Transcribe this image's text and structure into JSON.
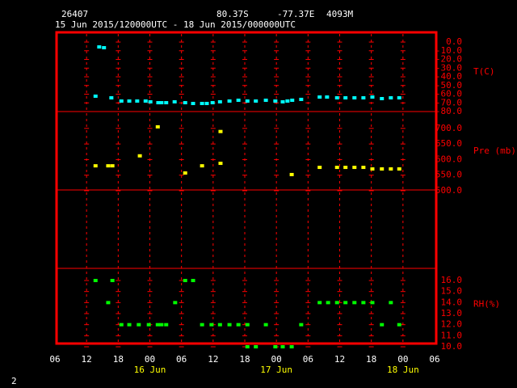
{
  "header": {
    "station": "26407",
    "lat": "80.37S",
    "lon": "-77.37E",
    "elev": "4093M",
    "period": "15 Jun 2015/120000UTC - 18 Jun 2015/000000UTC"
  },
  "footer": "2",
  "chart_data": [
    {
      "type": "scatter",
      "ylabel": "T(C)",
      "color": "#00ffff",
      "xlim": [
        6,
        78
      ],
      "ylim": [
        -80,
        11.2
      ],
      "yticks": [
        {
          "value": 0,
          "label": "0.0"
        },
        {
          "value": -10,
          "label": "-10.0"
        },
        {
          "value": -20,
          "label": "-20.0"
        },
        {
          "value": -30,
          "label": "-30.0"
        },
        {
          "value": -40,
          "label": "-40.0"
        },
        {
          "value": -50,
          "label": "-50.0"
        },
        {
          "value": -60,
          "label": "-60.0"
        },
        {
          "value": -70,
          "label": "-70.0"
        },
        {
          "value": -80,
          "label": "-80.0"
        }
      ],
      "x": [
        13.7,
        14.4,
        15.3,
        16.7,
        18.6,
        20.1,
        21.6,
        23.2,
        24.1,
        25.6,
        26.2,
        27.1,
        28.7,
        30.7,
        32.2,
        33.9,
        34.8,
        35.9,
        37.3,
        39.1,
        40.8,
        42.5,
        44.1,
        46.0,
        47.8,
        49.2,
        50.1,
        51.0,
        52.7,
        56.2,
        57.6,
        59.5,
        61.1,
        62.8,
        64.5,
        66.2,
        68.0,
        69.7,
        71.3
      ],
      "values": [
        -62.3,
        -5.6,
        -6.5,
        -64.2,
        -67.9,
        -67.9,
        -67.9,
        -67.9,
        -68.8,
        -69.8,
        -69.8,
        -69.8,
        -68.8,
        -69.8,
        -70.7,
        -70.7,
        -70.7,
        -69.8,
        -68.8,
        -67.9,
        -67.0,
        -67.9,
        -67.9,
        -67.0,
        -67.9,
        -68.8,
        -67.9,
        -67.0,
        -66.0,
        -63.3,
        -63.3,
        -64.2,
        -64.2,
        -64.2,
        -64.2,
        -63.3,
        -65.1,
        -64.2,
        -64.2
      ]
    },
    {
      "type": "scatter",
      "ylabel": "Pre (mb)",
      "color": "#ffff00",
      "xlim": [
        6,
        78
      ],
      "ylim": [
        500,
        754
      ],
      "yticks": [
        {
          "value": 700,
          "label": "700.0"
        },
        {
          "value": 650,
          "label": "650.0"
        },
        {
          "value": 600,
          "label": "600.0"
        },
        {
          "value": 550,
          "label": "550.0"
        },
        {
          "value": 500,
          "label": "500.0"
        }
      ],
      "x": [
        13.7,
        16.1,
        16.9,
        22.1,
        25.5,
        30.7,
        33.9,
        37.4,
        37.4,
        50.9,
        56.2,
        59.5,
        61.1,
        62.8,
        64.5,
        66.2,
        68.0,
        69.7,
        71.3
      ],
      "values": [
        580,
        580,
        580,
        612,
        705,
        557,
        580,
        690,
        588,
        552,
        575,
        575,
        575,
        575,
        575,
        570,
        570,
        570,
        570
      ]
    },
    {
      "type": "scatter",
      "ylabel": "RH(%)",
      "color": "#00ff00",
      "xlim": [
        6,
        78
      ],
      "ylim": [
        10,
        17.1
      ],
      "yticks": [
        {
          "value": 16,
          "label": "16.0"
        },
        {
          "value": 15,
          "label": "15.0"
        },
        {
          "value": 14,
          "label": "14.0"
        },
        {
          "value": 13,
          "label": "13.0"
        },
        {
          "value": 12,
          "label": "12.0"
        },
        {
          "value": 11,
          "label": "11.0"
        },
        {
          "value": 10,
          "label": "10.0"
        }
      ],
      "xticks": [
        {
          "value": 6,
          "label": "06"
        },
        {
          "value": 12,
          "label": "12"
        },
        {
          "value": 18,
          "label": "18"
        },
        {
          "value": 24,
          "label": "00"
        },
        {
          "value": 30,
          "label": "06"
        },
        {
          "value": 36,
          "label": "12"
        },
        {
          "value": 42,
          "label": "18"
        },
        {
          "value": 48,
          "label": "00"
        },
        {
          "value": 54,
          "label": "06"
        },
        {
          "value": 60,
          "label": "12"
        },
        {
          "value": 66,
          "label": "18"
        },
        {
          "value": 72,
          "label": "00"
        },
        {
          "value": 78,
          "label": "06"
        }
      ],
      "date_labels": [
        {
          "value": 24,
          "label": "16 Jun"
        },
        {
          "value": 48,
          "label": "17 Jun"
        },
        {
          "value": 72,
          "label": "18 Jun"
        }
      ],
      "x": [
        13.7,
        16.9,
        30.7,
        32.2,
        16.1,
        28.8,
        56.2,
        57.8,
        59.5,
        61.1,
        62.8,
        64.5,
        66.2,
        69.7,
        18.6,
        20.1,
        21.9,
        23.8,
        25.5,
        26.2,
        27.1,
        33.9,
        35.7,
        37.3,
        39.1,
        40.8,
        42.5,
        46.0,
        52.7,
        68.0,
        71.3,
        42.5,
        44.1,
        47.8,
        49.2,
        50.9
      ],
      "values": [
        16,
        16,
        16,
        16,
        14,
        14,
        14,
        14,
        14,
        14,
        14,
        14,
        14,
        14,
        12,
        12,
        12,
        12,
        12,
        12,
        12,
        12,
        12,
        12,
        12,
        12,
        12,
        12,
        12,
        12,
        12,
        10,
        10,
        10,
        10,
        10
      ]
    }
  ]
}
